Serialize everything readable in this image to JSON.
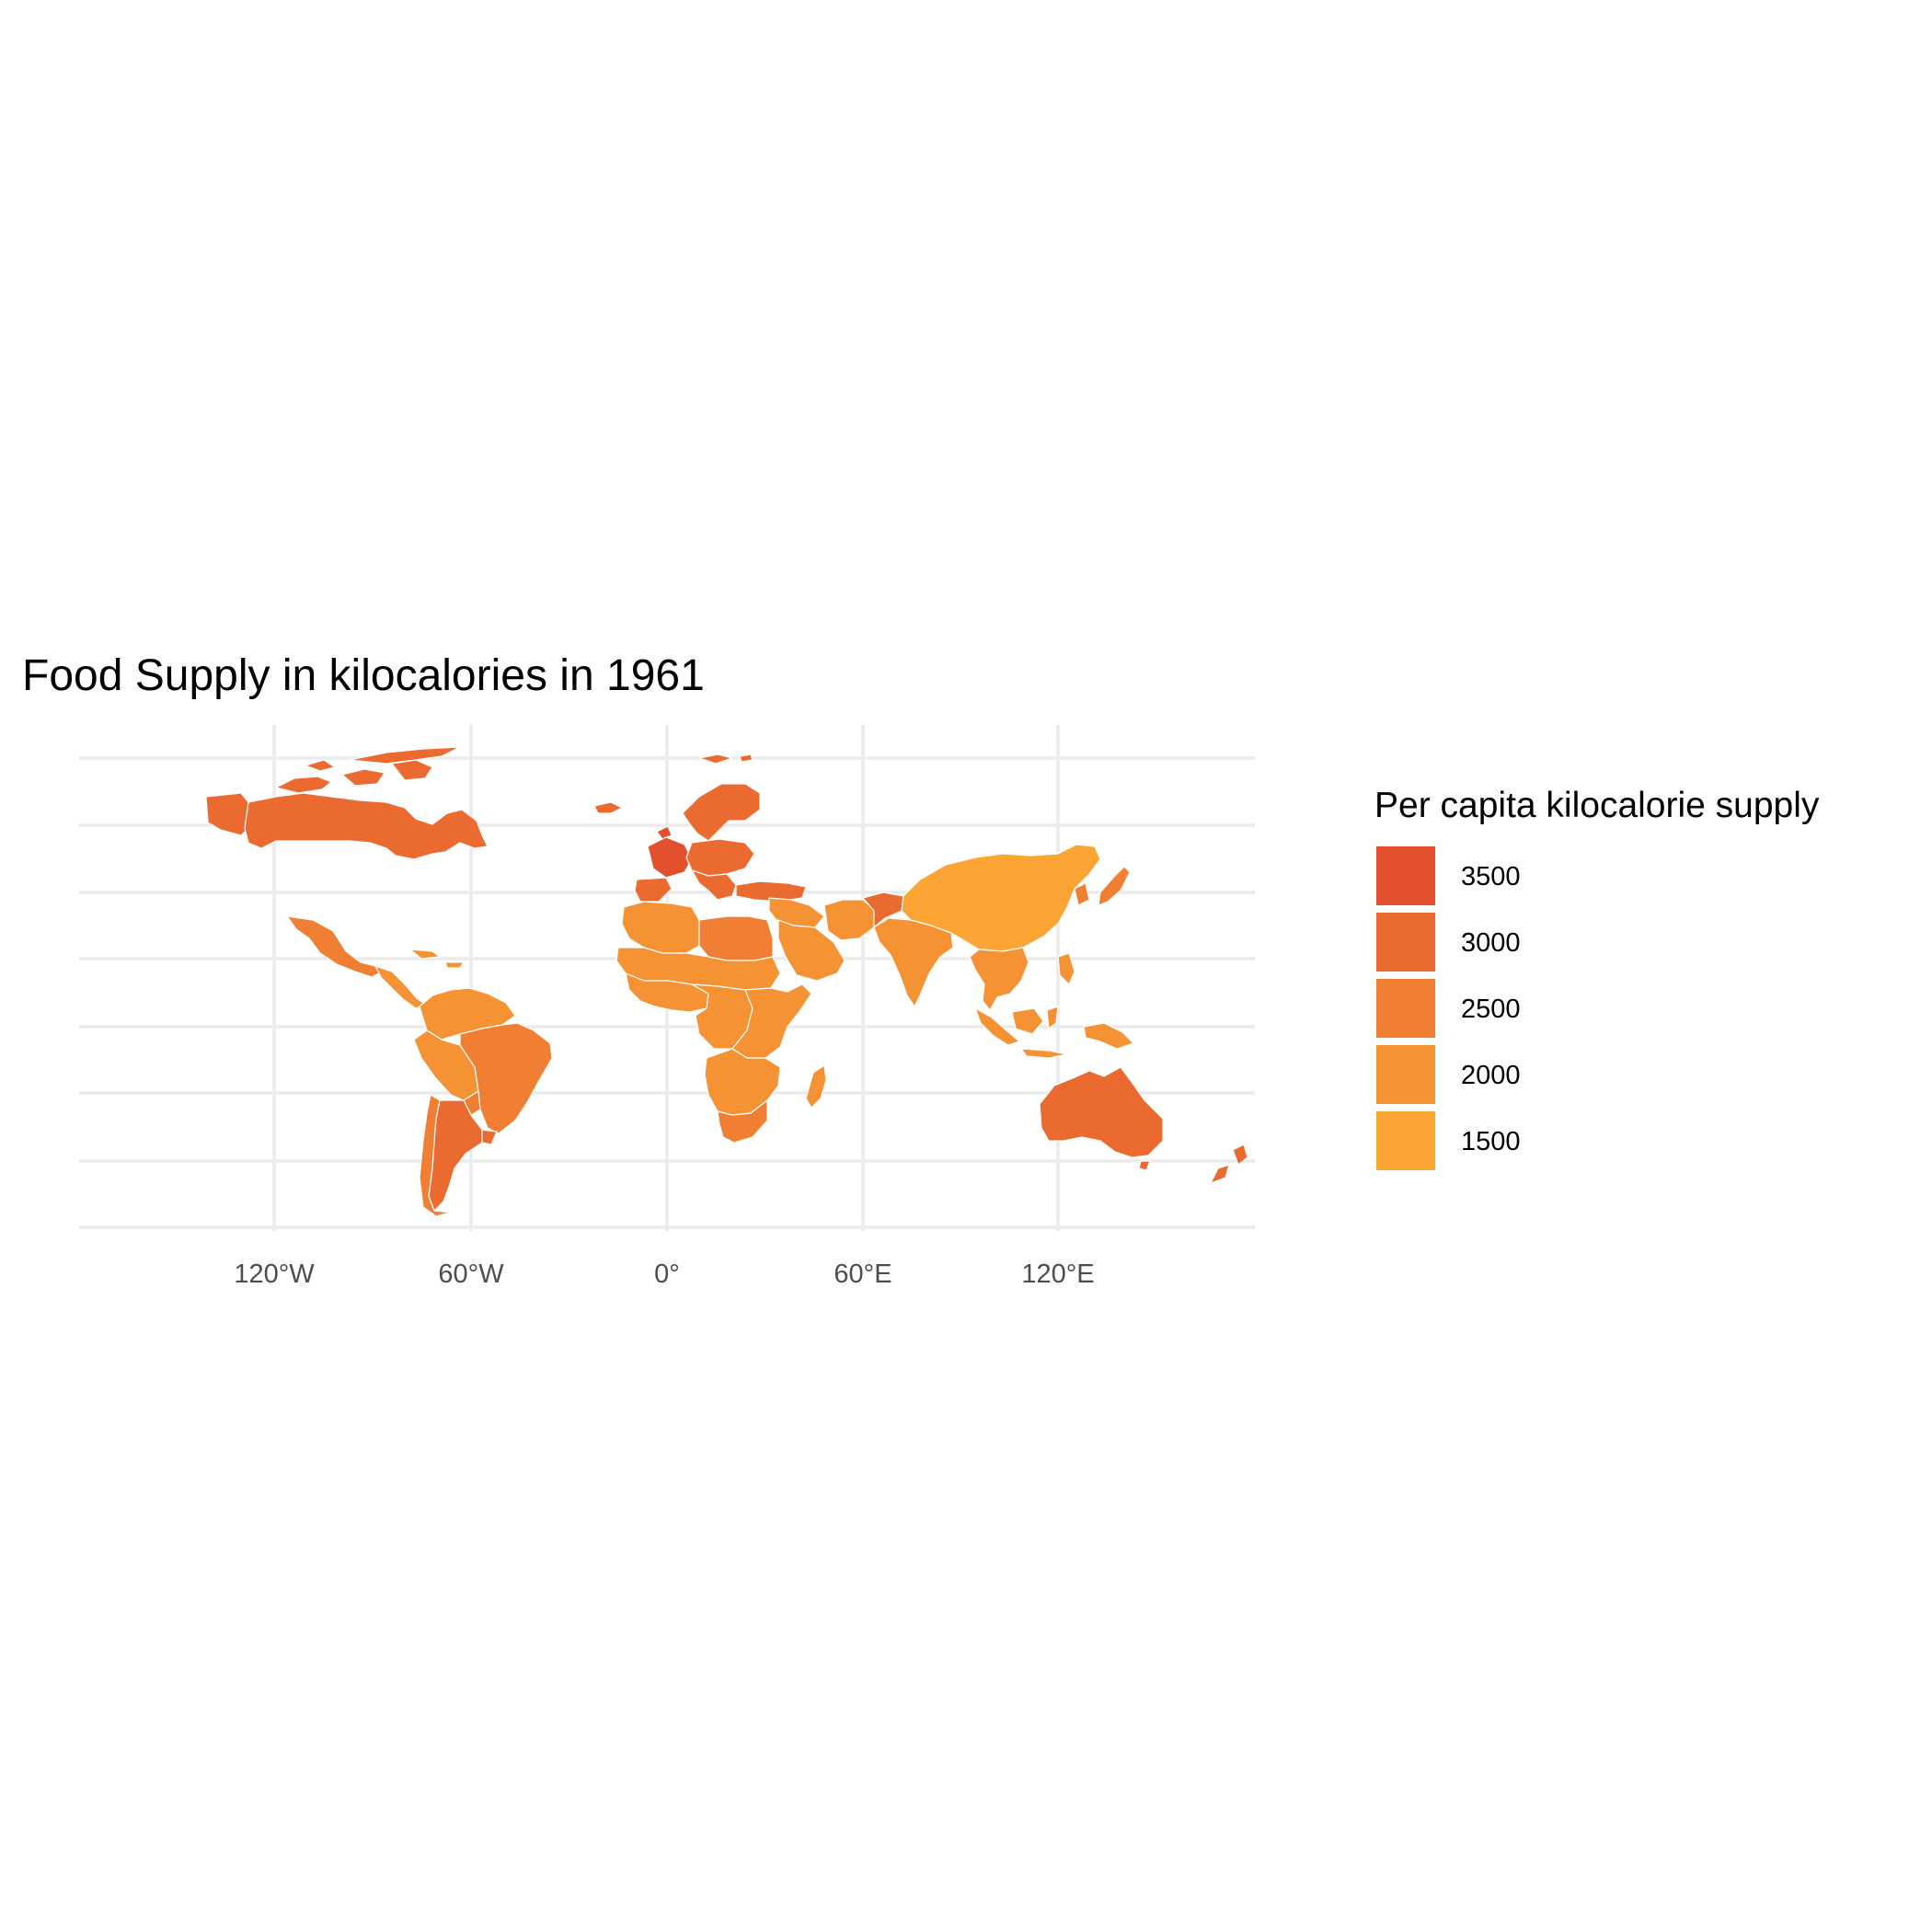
{
  "title": "Food Supply in kilocalories in 1961",
  "colors": {
    "background": "#ffffff",
    "grid": "#ebebeb",
    "border": "#ffffff",
    "tick_text": "#4d4d4d",
    "text": "#000000"
  },
  "map": {
    "type": "choropleth",
    "projection": "equirectangular",
    "x_axis": {
      "unit": "degrees longitude",
      "range": [
        -180,
        180
      ],
      "ticks": [
        {
          "value": -120,
          "label": "120°W"
        },
        {
          "value": -60,
          "label": "60°W"
        },
        {
          "value": 0,
          "label": "0°"
        },
        {
          "value": 60,
          "label": "60°E"
        },
        {
          "value": 120,
          "label": "120°E"
        }
      ]
    },
    "y_axis": {
      "unit": "degrees latitude",
      "range": [
        -56,
        84
      ],
      "gridlines": [
        -60,
        -40,
        -20,
        0,
        20,
        40,
        60,
        80
      ],
      "show_labels": false
    },
    "grid": true,
    "legend": {
      "title": "Per capita kilocalorie supply",
      "position": "right",
      "items": [
        {
          "label": "3500",
          "color": "#e3502d"
        },
        {
          "label": "3000",
          "color": "#eb6a30"
        },
        {
          "label": "2500",
          "color": "#f07f33"
        },
        {
          "label": "2000",
          "color": "#f49234"
        },
        {
          "label": "1500",
          "color": "#fca534"
        }
      ]
    }
  },
  "chart_data": {
    "type": "choropleth",
    "title": "Food Supply in kilocalories in 1961",
    "legend_title": "Per capita kilocalorie supply",
    "legend_values": [
      3500,
      3000,
      2500,
      2000,
      1500
    ],
    "x_tick_labels": [
      "120°W",
      "60°W",
      "0°",
      "60°E",
      "120°E"
    ],
    "xlim": [
      -180,
      180
    ],
    "ylim": [
      -56,
      84
    ],
    "regions": [
      {
        "shape": "canada",
        "value": 3100
      },
      {
        "shape": "arctic-islands",
        "value": 3100
      },
      {
        "shape": "alaska",
        "value": 3100
      },
      {
        "shape": "greenland-arctic",
        "value": 3100
      },
      {
        "shape": "mexico",
        "value": 2400
      },
      {
        "shape": "central-america",
        "value": 2200
      },
      {
        "shape": "caribbean",
        "value": 2200
      },
      {
        "shape": "venezuela-colombia",
        "value": 2200
      },
      {
        "shape": "brazil",
        "value": 2300
      },
      {
        "shape": "peru-bolivia",
        "value": 2100
      },
      {
        "shape": "paraguay",
        "value": 2300
      },
      {
        "shape": "argentina",
        "value": 3100
      },
      {
        "shape": "chile",
        "value": 2500
      },
      {
        "shape": "uruguay",
        "value": 2900
      },
      {
        "shape": "iceland",
        "value": 3100
      },
      {
        "shape": "scandinavia",
        "value": 3000
      },
      {
        "shape": "western-europe",
        "value": 3300
      },
      {
        "shape": "central-europe",
        "value": 3200
      },
      {
        "shape": "iberia",
        "value": 2800
      },
      {
        "shape": "italy-balkans",
        "value": 2900
      },
      {
        "shape": "turkey",
        "value": 2900
      },
      {
        "shape": "north-africa",
        "value": 1900
      },
      {
        "shape": "egypt-libya",
        "value": 2300
      },
      {
        "shape": "sahel",
        "value": 1800
      },
      {
        "shape": "west-africa",
        "value": 2000
      },
      {
        "shape": "central-africa",
        "value": 1900
      },
      {
        "shape": "east-africa",
        "value": 2000
      },
      {
        "shape": "southern-africa",
        "value": 2000
      },
      {
        "shape": "south-africa",
        "value": 2700
      },
      {
        "shape": "madagascar",
        "value": 2200
      },
      {
        "shape": "middle-east",
        "value": 1900
      },
      {
        "shape": "arabia",
        "value": 1900
      },
      {
        "shape": "iran-afghanistan",
        "value": 2000
      },
      {
        "shape": "central-asia-hot",
        "value": 3000
      },
      {
        "shape": "india",
        "value": 2000
      },
      {
        "shape": "china-mongolia",
        "value": 1600
      },
      {
        "shape": "southeast-asia",
        "value": 2000
      },
      {
        "shape": "korea-japan",
        "value": 2300
      },
      {
        "shape": "indonesia-philippines",
        "value": 1900
      },
      {
        "shape": "papua",
        "value": 2000
      },
      {
        "shape": "australia",
        "value": 3100
      },
      {
        "shape": "new-zealand",
        "value": 3100
      }
    ]
  }
}
